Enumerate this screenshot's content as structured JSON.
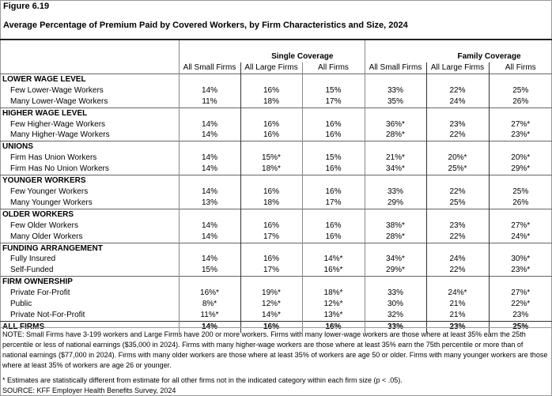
{
  "figure_label": "Figure 6.19",
  "title": "Average Percentage of Premium Paid by Covered Workers, by Firm Characteristics and Size, 2024",
  "groups": [
    "Single Coverage",
    "Family Coverage"
  ],
  "columns": [
    "All Small Firms",
    "All Large Firms",
    "All Firms",
    "All Small Firms",
    "All Large Firms",
    "All Firms"
  ],
  "sections": [
    {
      "title": "LOWER WAGE LEVEL",
      "rows": [
        {
          "label": "Few Lower-Wage Workers",
          "values": [
            "14%",
            "16%",
            "15%",
            "33%",
            "22%",
            "25%"
          ]
        },
        {
          "label": "Many Lower-Wage Workers",
          "values": [
            "11%",
            "18%",
            "17%",
            "35%",
            "24%",
            "26%"
          ]
        }
      ]
    },
    {
      "title": "HIGHER WAGE LEVEL",
      "rows": [
        {
          "label": "Few Higher-Wage Workers",
          "values": [
            "14%",
            "16%",
            "16%",
            "36%*",
            "23%",
            "27%*"
          ]
        },
        {
          "label": "Many Higher-Wage Workers",
          "values": [
            "14%",
            "16%",
            "16%",
            "28%*",
            "22%",
            "23%*"
          ]
        }
      ]
    },
    {
      "title": "UNIONS",
      "rows": [
        {
          "label": "Firm Has Union Workers",
          "values": [
            "14%",
            "15%*",
            "15%",
            "21%*",
            "20%*",
            "20%*"
          ]
        },
        {
          "label": "Firm Has No Union Workers",
          "values": [
            "14%",
            "18%*",
            "16%",
            "34%*",
            "25%*",
            "29%*"
          ]
        }
      ]
    },
    {
      "title": "YOUNGER WORKERS",
      "rows": [
        {
          "label": "Few Younger Workers",
          "values": [
            "14%",
            "16%",
            "16%",
            "33%",
            "22%",
            "25%"
          ]
        },
        {
          "label": "Many Younger Workers",
          "values": [
            "13%",
            "18%",
            "17%",
            "29%",
            "25%",
            "26%"
          ]
        }
      ]
    },
    {
      "title": "OLDER WORKERS",
      "rows": [
        {
          "label": "Few Older Workers",
          "values": [
            "14%",
            "16%",
            "16%",
            "38%*",
            "23%",
            "27%*"
          ]
        },
        {
          "label": "Many Older Workers",
          "values": [
            "14%",
            "17%",
            "16%",
            "28%*",
            "22%",
            "24%*"
          ]
        }
      ]
    },
    {
      "title": "FUNDING ARRANGEMENT",
      "rows": [
        {
          "label": "Fully Insured",
          "values": [
            "14%",
            "16%",
            "14%*",
            "34%*",
            "24%",
            "30%*"
          ]
        },
        {
          "label": "Self-Funded",
          "values": [
            "15%",
            "17%",
            "16%*",
            "29%*",
            "22%",
            "23%*"
          ]
        }
      ]
    },
    {
      "title": "FIRM OWNERSHIP",
      "rows": [
        {
          "label": "Private For-Profit",
          "values": [
            "16%*",
            "19%*",
            "18%*",
            "33%",
            "24%*",
            "27%*"
          ]
        },
        {
          "label": "Public",
          "values": [
            "8%*",
            "12%*",
            "12%*",
            "30%",
            "21%",
            "22%*"
          ]
        },
        {
          "label": "Private Not-For-Profit",
          "values": [
            "11%*",
            "14%*",
            "13%*",
            "32%",
            "21%",
            "23%"
          ]
        }
      ]
    }
  ],
  "total": {
    "label": "ALL FIRMS",
    "values": [
      "14%",
      "16%",
      "16%",
      "33%",
      "23%",
      "25%"
    ]
  },
  "note": "NOTE: Small Firms have 3-199 workers and Large Firms have 200 or more workers. Firms with many lower-wage workers are those where at least 35% earn the 25th percentile or less of national earnings ($35,000 in 2024). Firms with many higher-wage workers are those where at least 35% earn the 75th percentile or more than of national earnings ($77,000 in 2024). Firms with many older workers are those where at least 35% of workers are age 50 or older. Firms with many younger workers are those where at least 35% of workers are age 26 or younger.",
  "footnote": " * Estimates are statistically different from estimate for all other firms not in the indicated category within each firm size (p < .05).",
  "source": "SOURCE: KFF Employer Health Benefits Survey, 2024"
}
